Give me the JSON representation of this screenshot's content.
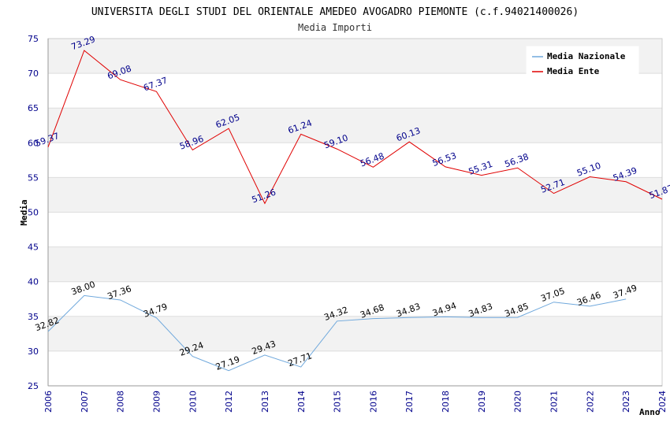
{
  "chart_data": {
    "type": "line",
    "title": "UNIVERSITA DEGLI STUDI DEL ORIENTALE AMEDEO AVOGADRO PIEMONTE (c.f.94021400026)",
    "subtitle": "Media Importi",
    "xlabel": "Anno",
    "ylabel": "Media",
    "ylim": [
      25,
      75
    ],
    "yticks": [
      25,
      30,
      35,
      40,
      45,
      50,
      55,
      60,
      65,
      70,
      75
    ],
    "categories": [
      "2006",
      "2007",
      "2008",
      "2009",
      "2010",
      "2012",
      "2013",
      "2014",
      "2015",
      "2016",
      "2017",
      "2018",
      "2019",
      "2020",
      "2021",
      "2022",
      "2023",
      "2024"
    ],
    "grid": true,
    "legend_position": "top-right",
    "series": [
      {
        "name": "Media Nazionale",
        "color": "#6fa8dc",
        "values": [
          32.82,
          38.0,
          37.36,
          34.79,
          29.24,
          27.19,
          29.43,
          27.71,
          34.32,
          34.68,
          34.83,
          34.94,
          34.83,
          34.85,
          37.05,
          36.46,
          37.49,
          null
        ],
        "labels": [
          "32.82",
          "38.00",
          "37.36",
          "34.79",
          "29.24",
          "27.19",
          "29.43",
          "27.71",
          "34.32",
          "34.68",
          "34.83",
          "34.94",
          "34.83",
          "34.85",
          "37.05",
          "36.46",
          "37.49",
          ""
        ]
      },
      {
        "name": "Media Ente",
        "color": "#e00000",
        "values": [
          59.37,
          73.29,
          69.08,
          67.37,
          58.96,
          62.05,
          51.26,
          61.24,
          59.1,
          56.48,
          60.13,
          56.53,
          55.31,
          56.38,
          52.71,
          55.1,
          54.39,
          51.87
        ],
        "labels": [
          "59.37",
          "73.29",
          "69.08",
          "67.37",
          "58.96",
          "62.05",
          "51.26",
          "61.24",
          "59.10",
          "56.48",
          "60.13",
          "56.53",
          "55.31",
          "56.38",
          "52.71",
          "55.10",
          "54.39",
          "51.87"
        ]
      }
    ]
  }
}
